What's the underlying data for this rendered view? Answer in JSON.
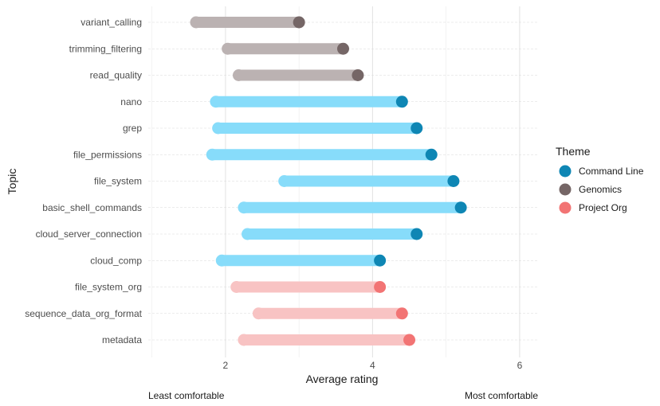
{
  "chart_data": {
    "type": "dumbbell",
    "xlabel": "Average rating",
    "ylabel": "Topic",
    "xlim": [
      0.95,
      6.25
    ],
    "x_ticks": [
      2,
      4,
      6
    ],
    "grid": true,
    "annotations": {
      "left": "Least comfortable",
      "right": "Most comfortable"
    },
    "legend": {
      "title": "Theme",
      "placement": "right",
      "entries": [
        {
          "name": "Command Line",
          "color": "#0e86b4",
          "light": "#87dcfa"
        },
        {
          "name": "Genomics",
          "color": "#756666",
          "light": "#bbb2b2"
        },
        {
          "name": "Project Org",
          "color": "#f27474",
          "light": "#f8c3c3"
        }
      ]
    },
    "topics": [
      {
        "topic": "variant_calling",
        "theme": "Genomics",
        "start": 1.6,
        "end": 3.0
      },
      {
        "topic": "trimming_filtering",
        "theme": "Genomics",
        "start": 2.03,
        "end": 3.6
      },
      {
        "topic": "read_quality",
        "theme": "Genomics",
        "start": 2.18,
        "end": 3.8
      },
      {
        "topic": "nano",
        "theme": "Command Line",
        "start": 1.87,
        "end": 4.4
      },
      {
        "topic": "grep",
        "theme": "Command Line",
        "start": 1.9,
        "end": 4.6
      },
      {
        "topic": "file_permissions",
        "theme": "Command Line",
        "start": 1.82,
        "end": 4.8
      },
      {
        "topic": "file_system",
        "theme": "Command Line",
        "start": 2.8,
        "end": 5.1
      },
      {
        "topic": "basic_shell_commands",
        "theme": "Command Line",
        "start": 2.25,
        "end": 5.2
      },
      {
        "topic": "cloud_server_connection",
        "theme": "Command Line",
        "start": 2.3,
        "end": 4.6
      },
      {
        "topic": "cloud_comp",
        "theme": "Command Line",
        "start": 1.95,
        "end": 4.1
      },
      {
        "topic": "file_system_org",
        "theme": "Project Org",
        "start": 2.15,
        "end": 4.1
      },
      {
        "topic": "sequence_data_org_format",
        "theme": "Project Org",
        "start": 2.45,
        "end": 4.4
      },
      {
        "topic": "metadata",
        "theme": "Project Org",
        "start": 2.25,
        "end": 4.5
      }
    ]
  }
}
